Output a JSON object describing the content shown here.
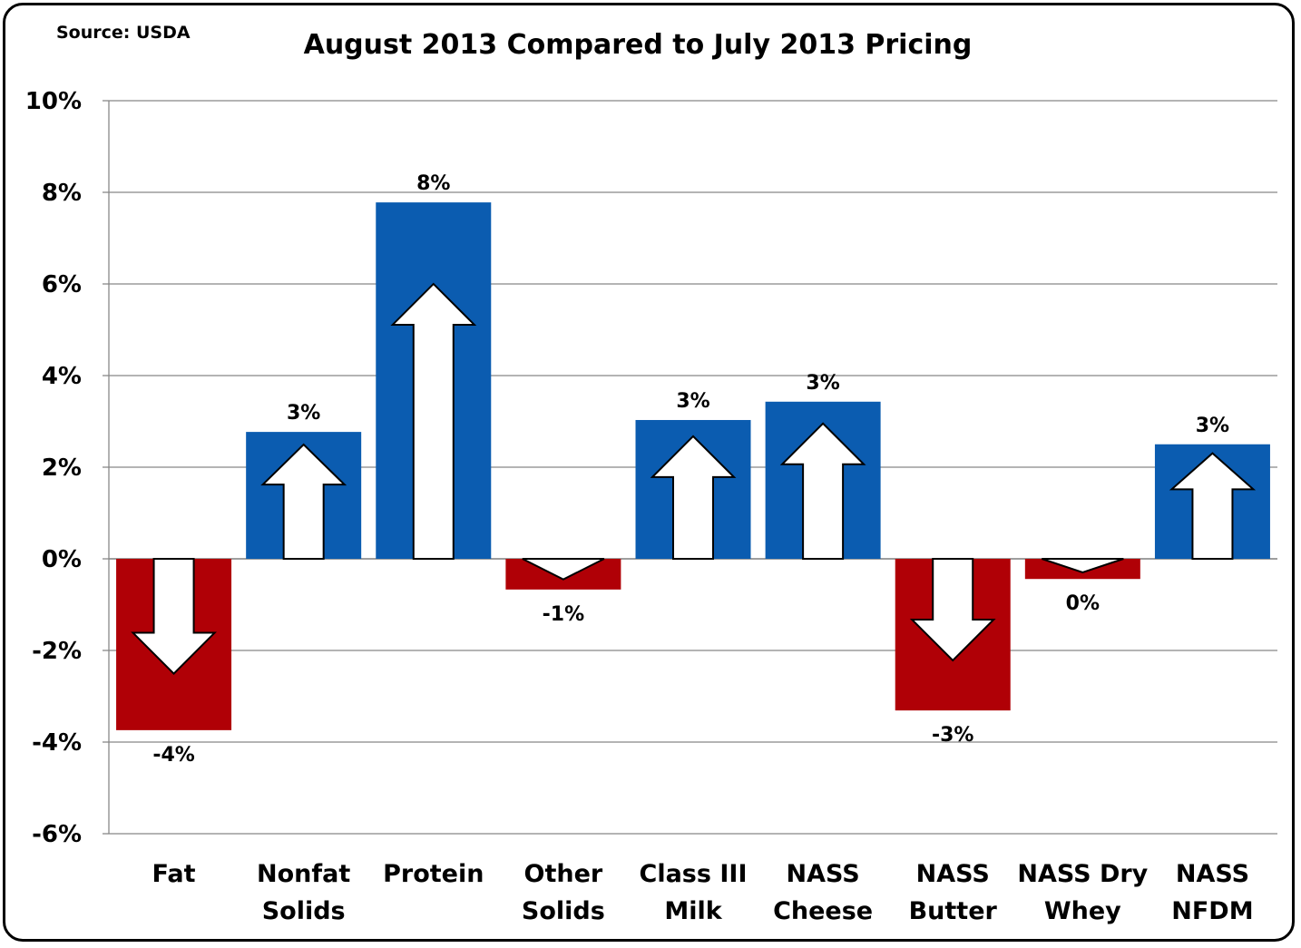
{
  "chart_data": {
    "type": "bar",
    "title": "August 2013 Compared to July 2013 Pricing",
    "source_note": "Source: USDA",
    "categories": [
      "Fat",
      "Nonfat Solids",
      "Protein",
      "Other Solids",
      "Class III Milk",
      "NASS Cheese",
      "NASS Butter",
      "NASS Dry Whey",
      "NASS NFDM"
    ],
    "category_lines": [
      [
        "Fat"
      ],
      [
        "Nonfat",
        "Solids"
      ],
      [
        "Protein"
      ],
      [
        "Other",
        "Solids"
      ],
      [
        "Class III",
        "Milk"
      ],
      [
        "NASS",
        "Cheese"
      ],
      [
        "NASS",
        "Butter"
      ],
      [
        "NASS Dry",
        "Whey"
      ],
      [
        "NASS",
        "NFDM"
      ]
    ],
    "values": [
      -3.74,
      2.77,
      7.78,
      -0.67,
      3.03,
      3.43,
      -3.31,
      -0.44,
      2.5
    ],
    "data_labels": [
      "-4%",
      "3%",
      "8%",
      "-1%",
      "3%",
      "3%",
      "-3%",
      "0%",
      "3%"
    ],
    "xlabel": "",
    "ylabel": "",
    "ylim": [
      -6,
      10
    ],
    "yticks": [
      10,
      8,
      6,
      4,
      2,
      0,
      -2,
      -4,
      -6
    ],
    "ytick_labels": [
      "10%",
      "8%",
      "6%",
      "4%",
      "2%",
      "0%",
      "-2%",
      "-4%",
      "-6%"
    ],
    "grid": true,
    "legend": "none",
    "colors": {
      "positive": "#0B5CB0",
      "negative": "#B00006",
      "arrow": "#FFFFFF"
    }
  }
}
